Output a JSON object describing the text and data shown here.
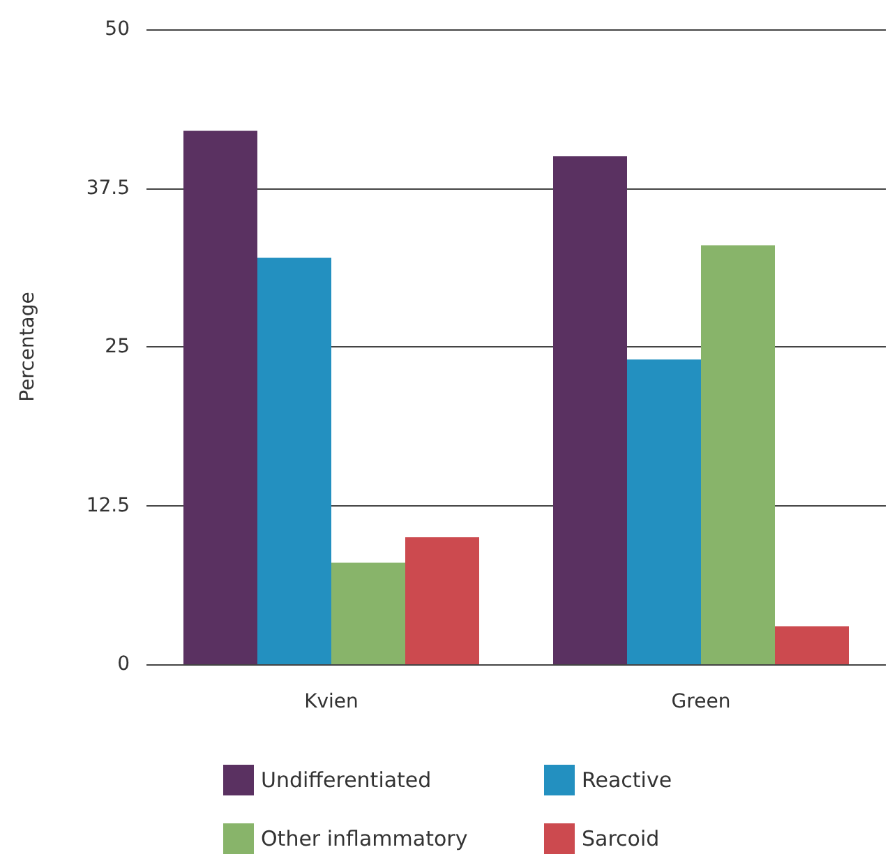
{
  "chart_data": {
    "type": "bar",
    "ylabel": "Percentage",
    "categories": [
      "Kvien",
      "Green"
    ],
    "series": [
      {
        "name": "Undifferentiated",
        "color": "#5a3161",
        "values": [
          42,
          40
        ]
      },
      {
        "name": "Reactive",
        "color": "#2390c0",
        "values": [
          32,
          24
        ]
      },
      {
        "name": "Other inflammatory",
        "color": "#88b46a",
        "values": [
          8,
          33
        ]
      },
      {
        "name": "Sarcoid",
        "color": "#cc4a4f",
        "values": [
          10,
          3
        ]
      }
    ],
    "ylim": [
      0,
      50
    ],
    "yticks": [
      0,
      12.5,
      25,
      37.5,
      50
    ],
    "grid": "y",
    "legend": "bottom"
  }
}
